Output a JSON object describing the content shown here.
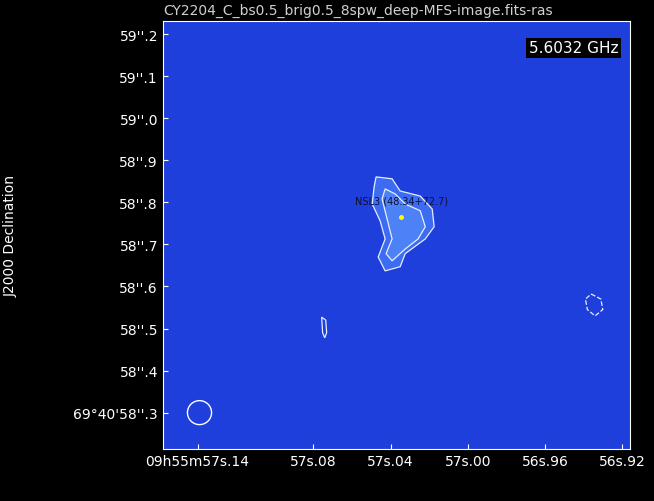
{
  "chart_data": {
    "type": "image",
    "title": "CY2204_C_bs0.5_brig0.5_8spw_deep-MFS-image.fits-ras",
    "frequency_label": "5.6032 GHz",
    "y_label": "J2000 Declination",
    "color": "#1e3fdc",
    "xlim": [
      57.158,
      56.916
    ],
    "ylim": [
      58.214,
      59.231
    ],
    "xticks": [
      {
        "value": 57.14,
        "label": "09h55m57s.14"
      },
      {
        "value": 57.08,
        "label": "57s.08"
      },
      {
        "value": 57.04,
        "label": "57s.04"
      },
      {
        "value": 57.0,
        "label": "57s.00"
      },
      {
        "value": 56.96,
        "label": "56s.96"
      },
      {
        "value": 56.92,
        "label": "56s.92"
      }
    ],
    "yticks": [
      {
        "value": 58.3,
        "label": "69°40'58''.3"
      },
      {
        "value": 58.4,
        "label": "58''.4"
      },
      {
        "value": 58.5,
        "label": "58''.5"
      },
      {
        "value": 58.6,
        "label": "58''.6"
      },
      {
        "value": 58.7,
        "label": "58''.7"
      },
      {
        "value": 58.8,
        "label": "58''.8"
      },
      {
        "value": 58.9,
        "label": "58''.9"
      },
      {
        "value": 59.0,
        "label": "59''.0"
      },
      {
        "value": 59.1,
        "label": "59''.1"
      },
      {
        "value": 59.2,
        "label": "59''.2"
      }
    ],
    "contours": [
      {
        "x": [
          57.0475,
          57.0392,
          57.035,
          57.0246,
          57.0184,
          57.0174,
          57.022,
          57.0324,
          57.035,
          57.0428,
          57.0464,
          57.0428,
          57.0454,
          57.0495,
          57.0485
        ],
        "y": [
          58.8605,
          58.856,
          58.827,
          58.815,
          58.784,
          58.742,
          58.713,
          58.678,
          58.647,
          58.637,
          58.67,
          58.713,
          58.756,
          58.796,
          58.837
        ],
        "line_style": "solid"
      },
      {
        "x": [
          57.0428,
          57.0376,
          57.0324,
          57.0246,
          57.022,
          57.0257,
          57.0324,
          57.0392,
          57.0423,
          57.0392,
          57.0418,
          57.0444
        ],
        "y": [
          58.832,
          58.82,
          58.796,
          58.78,
          58.742,
          58.713,
          58.689,
          58.661,
          58.678,
          58.713,
          58.761,
          58.808
        ],
        "line_style": "solid"
      },
      {
        "x": [
          57.0757,
          57.0736,
          57.0731,
          57.0741,
          57.0752
        ],
        "y": [
          58.527,
          58.52,
          58.49,
          58.478,
          58.49
        ],
        "line_style": "solid"
      },
      {
        "x": [
          56.936,
          56.931,
          56.93,
          56.934,
          56.938,
          56.939
        ],
        "y": [
          58.582,
          58.57,
          58.545,
          58.53,
          58.545,
          58.57
        ],
        "line_style": "dashed"
      }
    ],
    "annotation": {
      "text": "NSL3 (48.34+72.7)",
      "x": 57.0345,
      "y": 58.765
    },
    "beam": {
      "x": 57.139,
      "y": 58.3,
      "width": 0.0125,
      "height": 0.057
    }
  }
}
